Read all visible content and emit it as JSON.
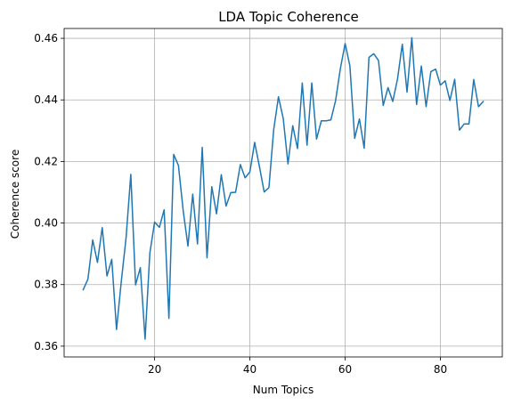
{
  "chart_data": {
    "type": "line",
    "title": "LDA Topic Coherence",
    "xlabel": "Num Topics",
    "ylabel": "Coherence score",
    "xlim": [
      1,
      93
    ],
    "ylim": [
      0.3565,
      0.4632
    ],
    "xticks": [
      20,
      40,
      60,
      80
    ],
    "yticks": [
      0.36,
      0.38,
      0.4,
      0.42,
      0.44,
      0.46
    ],
    "xtick_labels": [
      "20",
      "40",
      "60",
      "80"
    ],
    "ytick_labels": [
      "0.36",
      "0.38",
      "0.40",
      "0.42",
      "0.44",
      "0.46"
    ],
    "grid": true,
    "color": "#1f77b4",
    "x": [
      5,
      6,
      7,
      8,
      9,
      10,
      11,
      12,
      13,
      14,
      15,
      16,
      17,
      18,
      19,
      20,
      21,
      22,
      23,
      24,
      25,
      26,
      27,
      28,
      29,
      30,
      31,
      32,
      33,
      34,
      35,
      36,
      37,
      38,
      39,
      40,
      41,
      42,
      43,
      44,
      45,
      46,
      47,
      48,
      49,
      50,
      51,
      52,
      53,
      54,
      55,
      56,
      57,
      58,
      59,
      60,
      61,
      62,
      63,
      64,
      65,
      66,
      67,
      68,
      69,
      70,
      71,
      72,
      73,
      74,
      75,
      76,
      77,
      78,
      79,
      80,
      81,
      82,
      83,
      84,
      85,
      86,
      87,
      88,
      89
    ],
    "y": [
      0.3783,
      0.3818,
      0.3945,
      0.3872,
      0.3985,
      0.3828,
      0.3882,
      0.3654,
      0.381,
      0.3951,
      0.4158,
      0.3799,
      0.3855,
      0.3623,
      0.3903,
      0.4003,
      0.3986,
      0.4043,
      0.369,
      0.4223,
      0.4187,
      0.404,
      0.3925,
      0.4094,
      0.3932,
      0.4246,
      0.3887,
      0.4118,
      0.403,
      0.4157,
      0.4055,
      0.4099,
      0.41,
      0.419,
      0.4147,
      0.4166,
      0.4262,
      0.4184,
      0.4101,
      0.4115,
      0.4303,
      0.441,
      0.434,
      0.4192,
      0.4316,
      0.4242,
      0.4455,
      0.4253,
      0.4455,
      0.4273,
      0.4332,
      0.4332,
      0.4335,
      0.4398,
      0.4502,
      0.4583,
      0.451,
      0.4275,
      0.4338,
      0.4243,
      0.4538,
      0.455,
      0.4528,
      0.4382,
      0.444,
      0.4395,
      0.4468,
      0.4581,
      0.4425,
      0.4602,
      0.4385,
      0.451,
      0.4378,
      0.4492,
      0.45,
      0.4448,
      0.4462,
      0.4398,
      0.4467,
      0.4302,
      0.4322,
      0.4322,
      0.4466,
      0.4378,
      0.4395
    ]
  }
}
